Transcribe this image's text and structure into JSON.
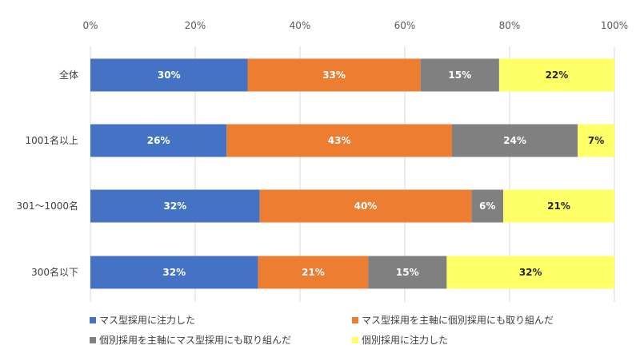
{
  "chart_data": {
    "type": "bar",
    "orientation": "horizontal",
    "stacked": "percent",
    "categories": [
      "全体",
      "1001名以上",
      "301～1000名",
      "300名以下"
    ],
    "series": [
      {
        "name": "マス型採用に注力した",
        "values": [
          30,
          26,
          32,
          32
        ],
        "labels": [
          "30%",
          "26%",
          "32%",
          "32%"
        ],
        "color": "#4472C4",
        "label_color": "#ffffff"
      },
      {
        "name": "マス型採用を主軸に個別採用にも取り組んだ",
        "values": [
          33,
          43,
          40,
          21
        ],
        "labels": [
          "33%",
          "43%",
          "40%",
          "21%"
        ],
        "color": "#ED7D31",
        "label_color": "#ffffff"
      },
      {
        "name": "個別採用を主軸にマス型採用にも取り組んだ",
        "values": [
          15,
          24,
          6,
          15
        ],
        "labels": [
          "15%",
          "24%",
          "6%",
          "15%"
        ],
        "color": "#808080",
        "label_color": "#ffffff"
      },
      {
        "name": "個別採用に注力した",
        "values": [
          22,
          7,
          21,
          32
        ],
        "labels": [
          "22%",
          "7%",
          "21%",
          "32%"
        ],
        "color": "#FFFF66",
        "label_color": "#262626"
      }
    ],
    "x_ticks": [
      "0%",
      "20%",
      "40%",
      "60%",
      "80%",
      "100%"
    ],
    "xlim": [
      0,
      100
    ],
    "grid": true,
    "legend": "bottom"
  }
}
